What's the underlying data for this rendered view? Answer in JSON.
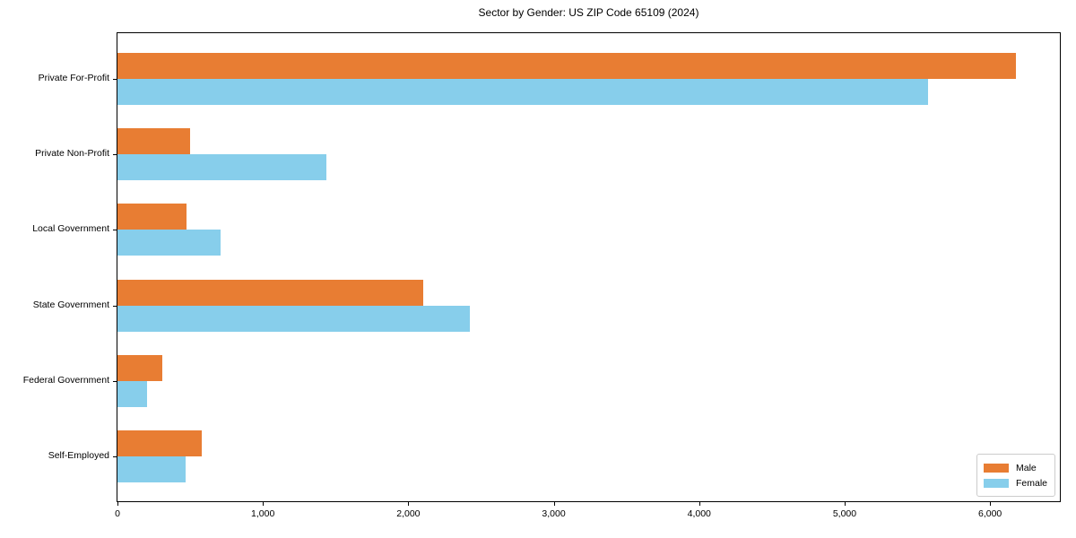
{
  "chart_data": {
    "type": "bar",
    "orientation": "horizontal",
    "title": "Sector by Gender: US ZIP Code 65109 (2024)",
    "categories": [
      "Private For-Profit",
      "Private Non-Profit",
      "Local Government",
      "State Government",
      "Federal Government",
      "Self-Employed"
    ],
    "series": [
      {
        "name": "Male",
        "color": "#e87d33",
        "values": [
          6180,
          500,
          475,
          2100,
          310,
          580
        ]
      },
      {
        "name": "Female",
        "color": "#87ceeb",
        "values": [
          5575,
          1435,
          710,
          2420,
          205,
          470
        ]
      }
    ],
    "xlabel": "",
    "ylabel": "",
    "xlim": [
      0,
      6480
    ],
    "xticks": [
      0,
      1000,
      2000,
      3000,
      4000,
      5000,
      6000
    ],
    "xtick_labels": [
      "0",
      "1,000",
      "2,000",
      "3,000",
      "4,000",
      "5,000",
      "6,000"
    ],
    "grid": false,
    "legend_position": "lower right",
    "axis_color": "#000000",
    "background_color": "#ffffff"
  }
}
